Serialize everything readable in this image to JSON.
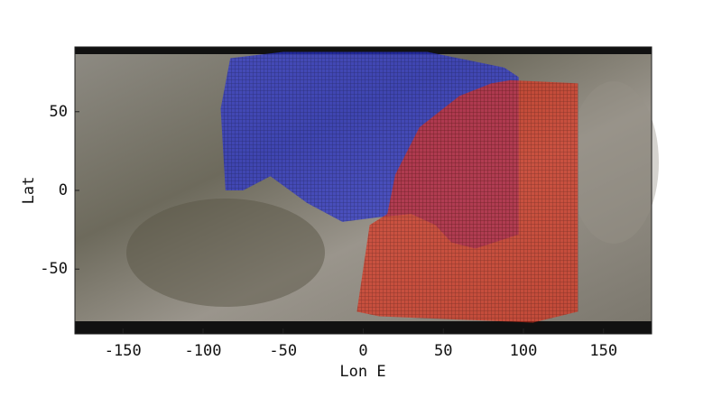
{
  "chart_data": {
    "type": "map",
    "xlabel": "Lon E",
    "ylabel": "Lat",
    "xlim": [
      -180,
      180
    ],
    "ylim": [
      -90,
      90
    ],
    "xticks": [
      -150,
      -100,
      -50,
      0,
      50,
      100,
      150
    ],
    "yticks": [
      -50,
      0,
      50
    ],
    "regions": [
      {
        "color": "#2a34d8",
        "lon": [
          -83,
          -50,
          40,
          88,
          97,
          97,
          70,
          55,
          45,
          30,
          10,
          -13,
          -35,
          -58,
          -75,
          -86,
          -89
        ],
        "lat": [
          84,
          88,
          88,
          78,
          72,
          -28,
          -37,
          -33,
          -22,
          -15,
          -17,
          -20,
          -8,
          9,
          0,
          0,
          52
        ]
      },
      {
        "color": "#e0321e",
        "lon": [
          92,
          134,
          134,
          106,
          10,
          -4,
          4,
          15,
          20,
          35,
          60,
          80
        ],
        "lat": [
          70,
          68,
          -77,
          -84,
          -80,
          -77,
          -22,
          -15,
          10,
          40,
          60,
          68
        ]
      }
    ]
  }
}
